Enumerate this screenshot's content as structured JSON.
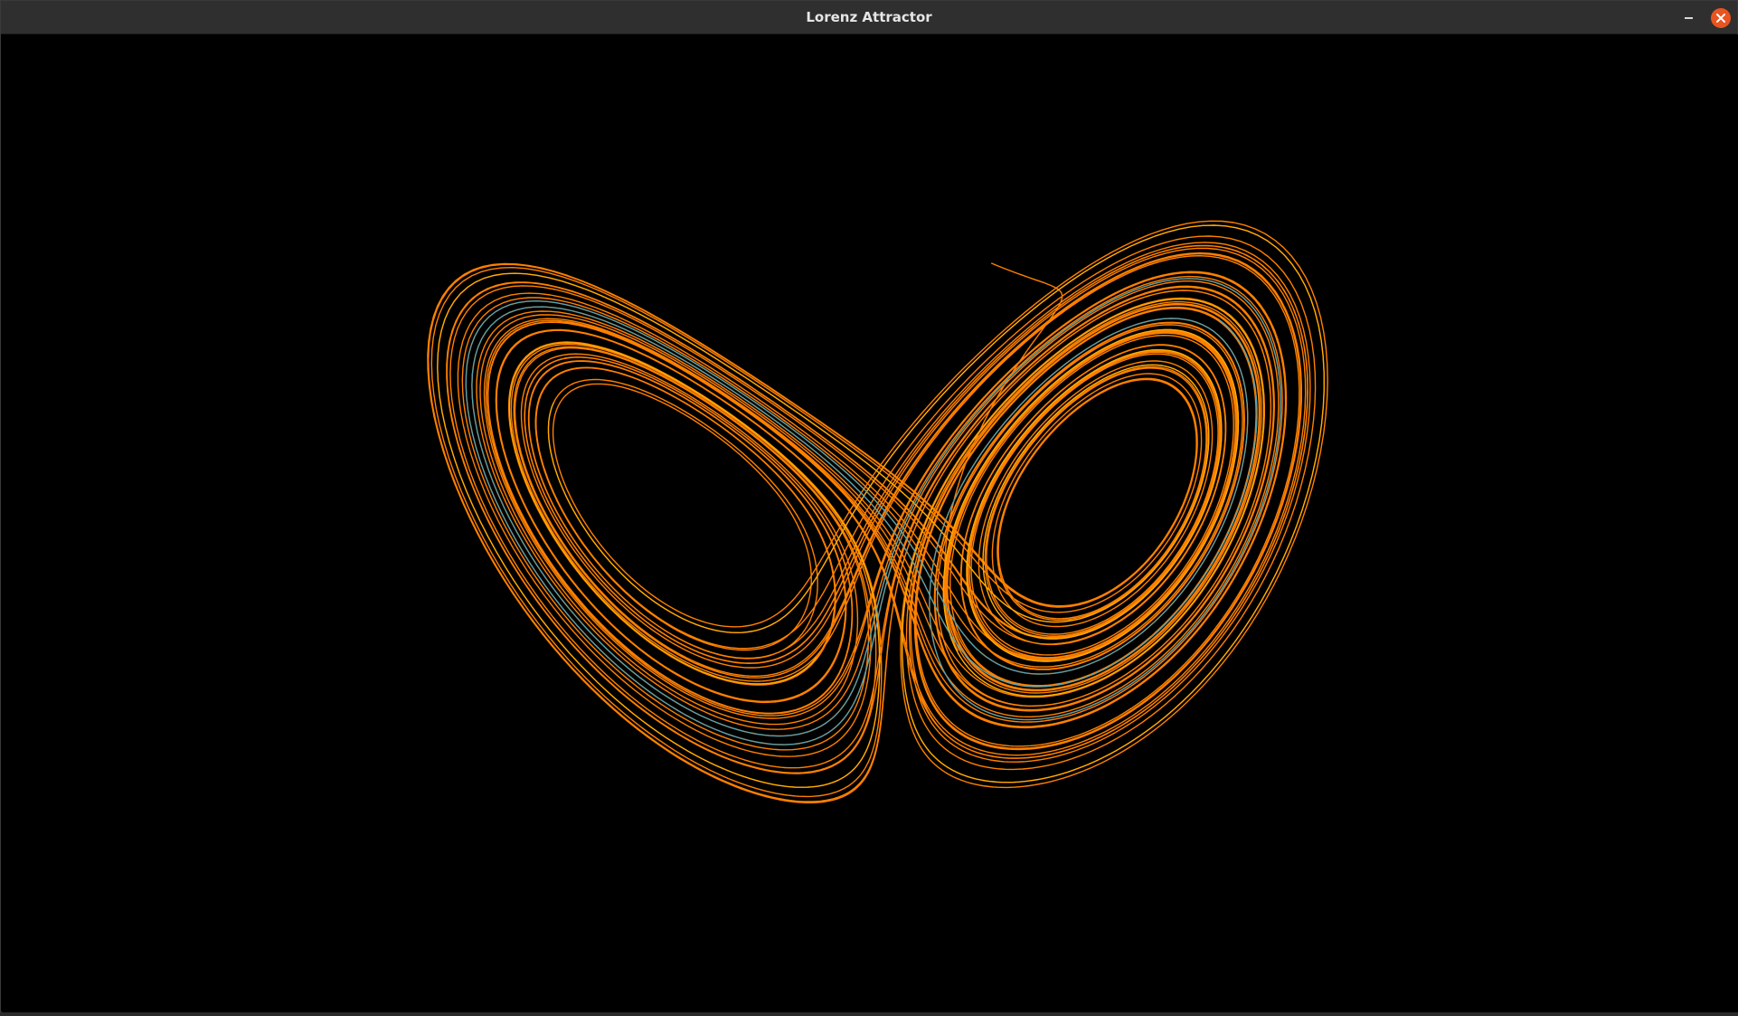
{
  "window": {
    "title": "Lorenz Attractor",
    "background_color": "#000000",
    "titlebar_color": "#2f2f2f",
    "close_button_color": "#e95420",
    "minimize_icon": "minimize-icon",
    "close_icon": "close-icon"
  },
  "plot": {
    "trace_colors": {
      "primary": "#ff8000",
      "secondary": "#ffb000",
      "highlight": "#3fa7c9"
    }
  }
}
